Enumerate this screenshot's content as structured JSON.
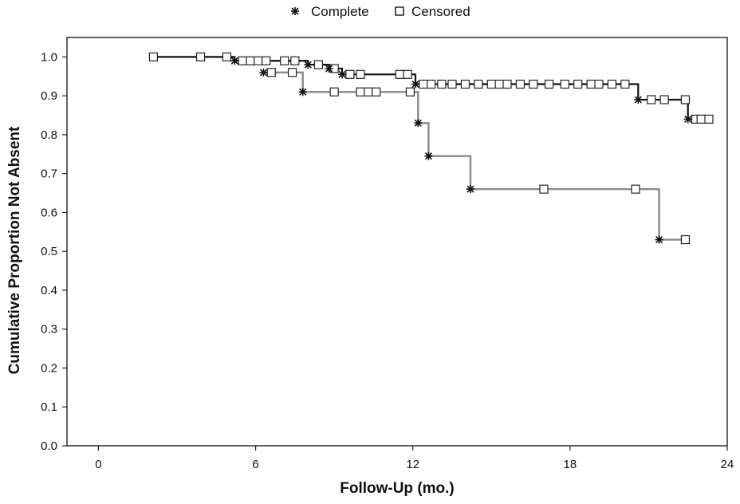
{
  "chart_data": {
    "type": "line",
    "title": "",
    "xlabel": "Follow-Up (mo.)",
    "ylabel": "Cumulative Proportion Not Absent",
    "xlim": [
      -1.2,
      24
    ],
    "ylim": [
      0,
      1.05
    ],
    "x_ticks": [
      0,
      6,
      12,
      18,
      24
    ],
    "x_tick_labels": [
      "0",
      "6",
      "12",
      "18",
      "24"
    ],
    "y_ticks": [
      0,
      0.1,
      0.2,
      0.3,
      0.4,
      0.5,
      0.6,
      0.7,
      0.8,
      0.9,
      1.0
    ],
    "y_tick_labels": [
      "0.0",
      "0.1",
      "0.2",
      "0.3",
      "0.4",
      "0.5",
      "0.6",
      "0.7",
      "0.8",
      "0.9",
      "1.0"
    ],
    "grid": false,
    "legend": {
      "position": "top-center",
      "entries": [
        {
          "label": "Complete",
          "marker": "asterisk"
        },
        {
          "label": "Censored",
          "marker": "open-square"
        }
      ]
    },
    "series": [
      {
        "color": "#111111",
        "steps": [
          [
            2.1,
            1.0
          ],
          [
            5.2,
            0.99
          ],
          [
            8.0,
            0.98
          ],
          [
            8.8,
            0.97
          ],
          [
            9.3,
            0.955
          ],
          [
            12.1,
            0.93
          ],
          [
            20.6,
            0.89
          ],
          [
            22.5,
            0.84
          ],
          [
            23.3,
            0.84
          ]
        ],
        "events": [
          [
            5.2,
            0.99
          ],
          [
            8.0,
            0.98
          ],
          [
            8.8,
            0.97
          ],
          [
            9.3,
            0.955
          ],
          [
            12.1,
            0.93
          ],
          [
            20.6,
            0.89
          ],
          [
            22.5,
            0.84
          ]
        ],
        "censored": [
          [
            2.1,
            1.0
          ],
          [
            3.9,
            1.0
          ],
          [
            4.9,
            1.0
          ],
          [
            5.5,
            0.99
          ],
          [
            5.8,
            0.99
          ],
          [
            6.1,
            0.99
          ],
          [
            6.4,
            0.99
          ],
          [
            7.1,
            0.99
          ],
          [
            7.5,
            0.99
          ],
          [
            8.4,
            0.98
          ],
          [
            9.0,
            0.97
          ],
          [
            9.6,
            0.955
          ],
          [
            10.0,
            0.955
          ],
          [
            11.5,
            0.955
          ],
          [
            11.8,
            0.955
          ],
          [
            12.4,
            0.93
          ],
          [
            12.7,
            0.93
          ],
          [
            13.1,
            0.93
          ],
          [
            13.5,
            0.93
          ],
          [
            14.0,
            0.93
          ],
          [
            14.5,
            0.93
          ],
          [
            15.0,
            0.93
          ],
          [
            15.3,
            0.93
          ],
          [
            15.6,
            0.93
          ],
          [
            16.1,
            0.93
          ],
          [
            16.6,
            0.93
          ],
          [
            17.2,
            0.93
          ],
          [
            17.8,
            0.93
          ],
          [
            18.3,
            0.93
          ],
          [
            18.8,
            0.93
          ],
          [
            19.1,
            0.93
          ],
          [
            19.6,
            0.93
          ],
          [
            20.1,
            0.93
          ],
          [
            21.1,
            0.89
          ],
          [
            21.6,
            0.89
          ],
          [
            22.4,
            0.89
          ],
          [
            22.8,
            0.84
          ],
          [
            23.0,
            0.84
          ],
          [
            23.3,
            0.84
          ]
        ]
      },
      {
        "color": "#8a8a8a",
        "steps": [
          [
            6.3,
            0.96
          ],
          [
            7.8,
            0.91
          ],
          [
            12.2,
            0.83
          ],
          [
            12.6,
            0.745
          ],
          [
            14.2,
            0.66
          ],
          [
            21.4,
            0.53
          ],
          [
            22.4,
            0.53
          ]
        ],
        "events": [
          [
            6.3,
            0.96
          ],
          [
            7.8,
            0.91
          ],
          [
            12.2,
            0.83
          ],
          [
            12.6,
            0.745
          ],
          [
            14.2,
            0.66
          ],
          [
            21.4,
            0.53
          ]
        ],
        "censored": [
          [
            6.6,
            0.96
          ],
          [
            7.4,
            0.96
          ],
          [
            9.0,
            0.91
          ],
          [
            10.0,
            0.91
          ],
          [
            10.3,
            0.91
          ],
          [
            10.6,
            0.91
          ],
          [
            11.9,
            0.91
          ],
          [
            17.0,
            0.66
          ],
          [
            20.5,
            0.66
          ],
          [
            22.4,
            0.53
          ]
        ]
      }
    ]
  }
}
